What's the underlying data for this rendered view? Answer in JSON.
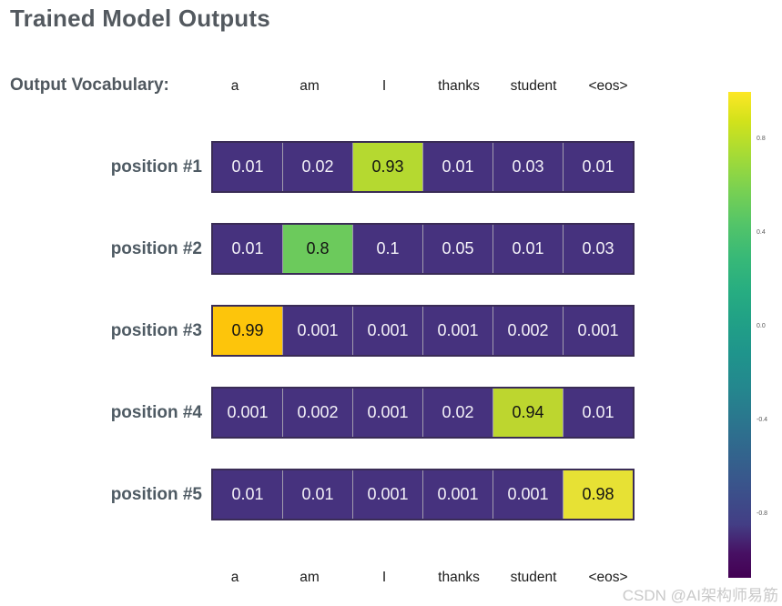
{
  "page": {
    "title": "Trained Model Outputs",
    "vocab_label": "Output Vocabulary:",
    "watermark": "CSDN @AI架构师易筋"
  },
  "chart_data": {
    "type": "heatmap",
    "title": "Trained Model Outputs",
    "columns": [
      "a",
      "am",
      "I",
      "thanks",
      "student",
      "<eos>"
    ],
    "row_labels": [
      "position #1",
      "position #2",
      "position #3",
      "position #4",
      "position #5"
    ],
    "rows": [
      {
        "label": "position #1",
        "values": [
          0.01,
          0.02,
          0.93,
          0.01,
          0.03,
          0.01
        ],
        "display": [
          "0.01",
          "0.02",
          "0.93",
          "0.01",
          "0.03",
          "0.01"
        ],
        "highlight_index": 2,
        "highlight_color": "#b5d930"
      },
      {
        "label": "position #2",
        "values": [
          0.01,
          0.8,
          0.1,
          0.05,
          0.01,
          0.03
        ],
        "display": [
          "0.01",
          "0.8",
          "0.1",
          "0.05",
          "0.01",
          "0.03"
        ],
        "highlight_index": 1,
        "highlight_color": "#6cca5c"
      },
      {
        "label": "position #3",
        "values": [
          0.99,
          0.001,
          0.001,
          0.001,
          0.002,
          0.001
        ],
        "display": [
          "0.99",
          "0.001",
          "0.001",
          "0.001",
          "0.002",
          "0.001"
        ],
        "highlight_index": 0,
        "highlight_color": "#fdc50b"
      },
      {
        "label": "position #4",
        "values": [
          0.001,
          0.002,
          0.001,
          0.02,
          0.94,
          0.01
        ],
        "display": [
          "0.001",
          "0.002",
          "0.001",
          "0.02",
          "0.94",
          "0.01"
        ],
        "highlight_index": 4,
        "highlight_color": "#bdd62f"
      },
      {
        "label": "position #5",
        "values": [
          0.01,
          0.01,
          0.001,
          0.001,
          0.001,
          0.98
        ],
        "display": [
          "0.01",
          "0.01",
          "0.001",
          "0.001",
          "0.001",
          "0.98"
        ],
        "highlight_index": 5,
        "highlight_color": "#e7e134"
      }
    ],
    "colors": {
      "base_cell": "#46327e",
      "base_text": "#f4f2f8",
      "highlight_text": "#141414",
      "cell_border_outer": "#3a2c56",
      "cell_divider": "#a29cae"
    },
    "colorbar": {
      "colormap": "viridis",
      "orientation": "vertical",
      "range": [
        -1,
        1
      ],
      "tick_labels": [
        "0.8",
        "0.4",
        "0.0",
        "-0.4",
        "-0.8"
      ]
    },
    "legend_position": "right",
    "grid": false
  }
}
